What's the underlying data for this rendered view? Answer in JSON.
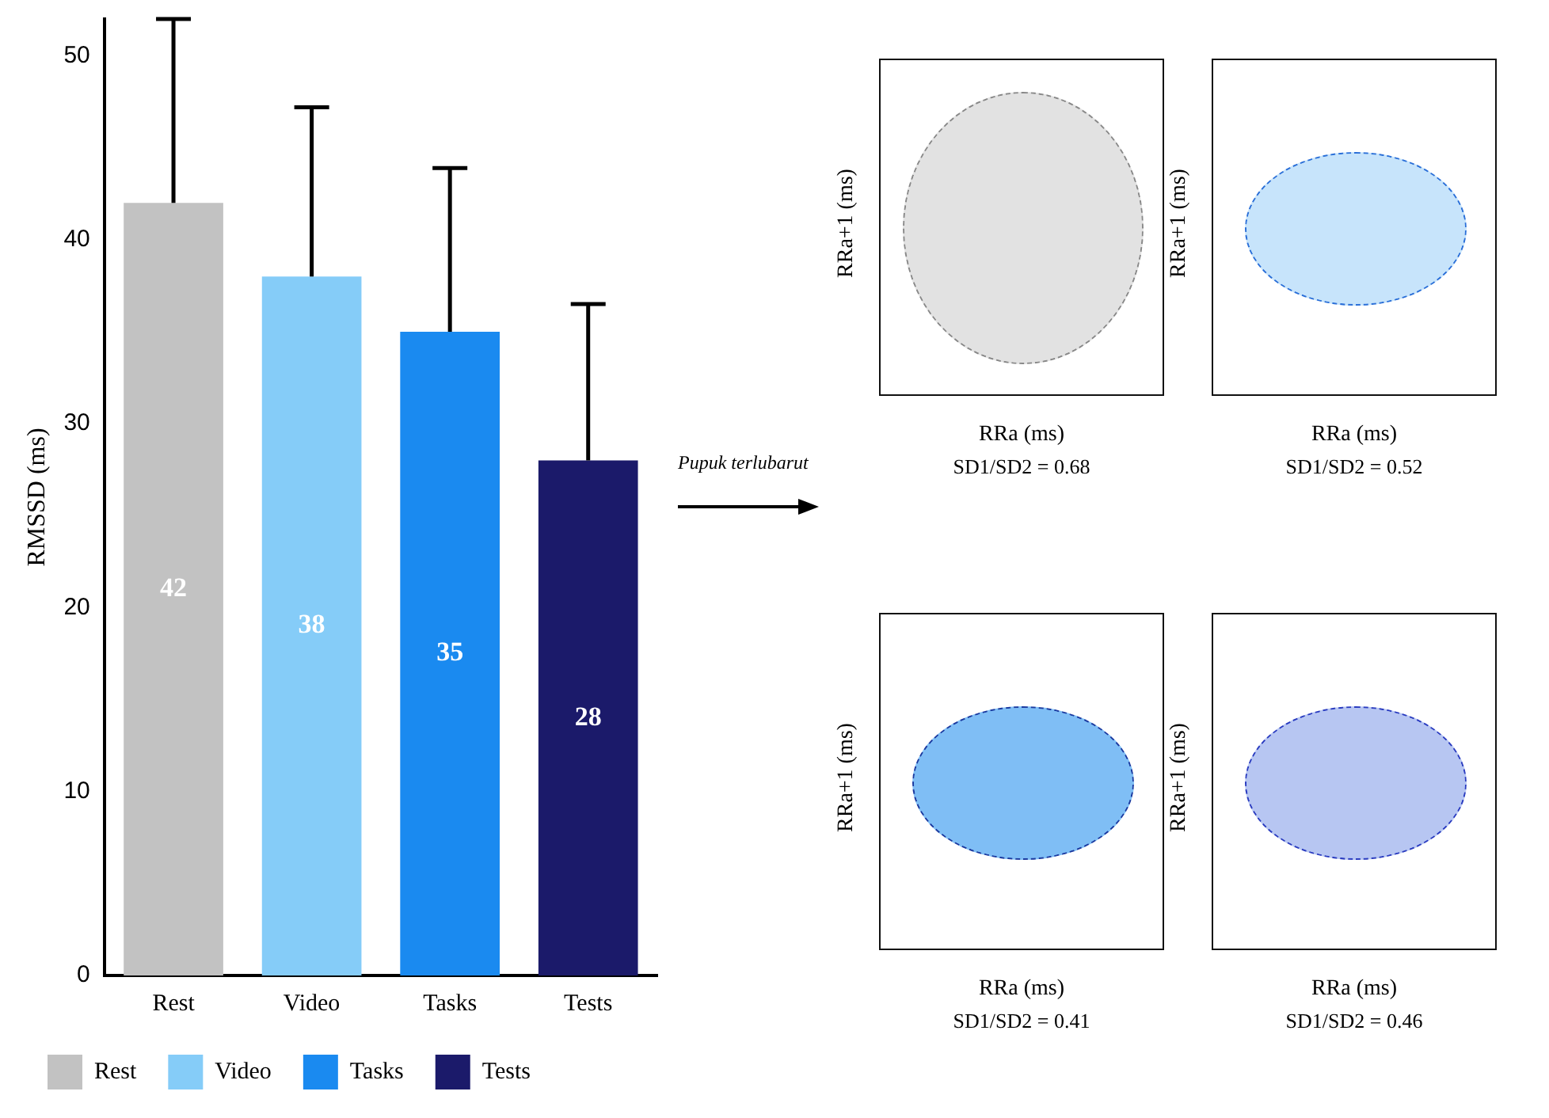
{
  "chart_data": [
    {
      "type": "bar",
      "ylabel": "RMSSD (ms)",
      "categories": [
        "Rest",
        "Video",
        "Tasks",
        "Tests"
      ],
      "series": [
        {
          "name": "Rest",
          "color": "#c2c2c2",
          "values": [
            42,
            null,
            null,
            null
          ],
          "errors": [
            [
              42,
              52
            ],
            null,
            null,
            null
          ]
        },
        {
          "name": "Video",
          "color": "#85ccf8",
          "values": [
            null,
            38,
            null,
            null
          ],
          "errors": [
            null,
            [
              38,
              47.2
            ],
            null,
            null
          ]
        },
        {
          "name": "Tasks",
          "color": "#1a8af0",
          "values": [
            null,
            null,
            35,
            null
          ],
          "errors": [
            null,
            null,
            [
              35,
              43.9
            ],
            null
          ]
        },
        {
          "name": "Tests",
          "color": "#1b1a6a",
          "values": [
            null,
            null,
            null,
            28
          ],
          "errors": [
            null,
            null,
            null,
            [
              28,
              36.5
            ]
          ]
        }
      ],
      "data_labels": true,
      "ylim": [
        0,
        52
      ],
      "yticks": [
        0,
        10,
        20,
        30,
        40,
        50
      ],
      "grid": false,
      "legend": "bottom",
      "annotations": [
        "Pupuk terlubarut"
      ]
    },
    {
      "type": "other",
      "xlabel": "RRa (ms)",
      "ylabel": "RRa+1 (ms)",
      "annotations": [
        "SD1/SD2 = 0.68"
      ]
    },
    {
      "type": "other",
      "xlabel": "RRa (ms)",
      "ylabel": "RRa+1 (ms)",
      "annotations": [
        "SD1/SD2 = 0.52"
      ]
    },
    {
      "type": "other",
      "xlabel": "RRa (ms)",
      "ylabel": "RRa+1 (ms)",
      "annotations": [
        "SD1/SD2 = 0.41"
      ]
    },
    {
      "type": "other",
      "xlabel": "RRa (ms)",
      "ylabel": "RRa+1 (ms)",
      "annotations": [
        "SD1/SD2 = 0.46"
      ]
    }
  ]
}
